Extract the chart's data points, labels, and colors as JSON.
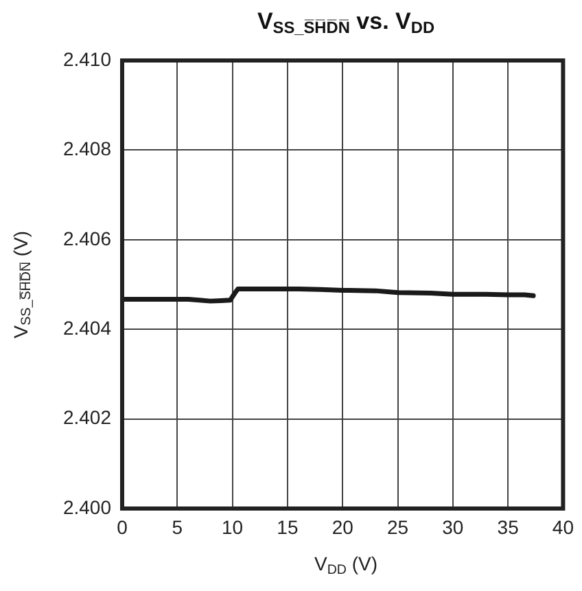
{
  "chart_data": {
    "type": "line",
    "title": "V$_{SS_S̅H̅D̅N̅}$ vs. V$_{DD}$",
    "xlabel": "V$_{DD}$ (V)",
    "ylabel": "V$_{SS_S̅H̅D̅N̅}$ (V)",
    "x": [
      0,
      3,
      6,
      7,
      8,
      9,
      9.8,
      10.2,
      10.5,
      13,
      16,
      18,
      20,
      23,
      25,
      28,
      30,
      33,
      35,
      36.5,
      37.3
    ],
    "series": [
      {
        "color": "#1a1a1a",
        "values": [
          2.40467,
          2.40467,
          2.40467,
          2.40465,
          2.40463,
          2.40464,
          2.40465,
          2.4048,
          2.4049,
          2.4049,
          2.4049,
          2.40489,
          2.40487,
          2.40486,
          2.40482,
          2.40481,
          2.40478,
          2.40478,
          2.40477,
          2.40477,
          2.40475
        ]
      }
    ],
    "xlim": [
      0,
      40
    ],
    "xticks": [
      0,
      5,
      10,
      15,
      20,
      25,
      30,
      35,
      40
    ],
    "ylim": [
      2.4,
      2.41
    ],
    "yticks": [
      {
        "value": 2.4,
        "label": "2.400"
      },
      {
        "value": 2.402,
        "label": "2.402"
      },
      {
        "value": 2.404,
        "label": "2.404"
      },
      {
        "value": 2.406,
        "label": "2.406"
      },
      {
        "value": 2.408,
        "label": "2.408"
      },
      {
        "value": 2.41,
        "label": "2.410"
      }
    ],
    "grid": true,
    "legend": false,
    "marker": "none",
    "line_style": "solid"
  }
}
